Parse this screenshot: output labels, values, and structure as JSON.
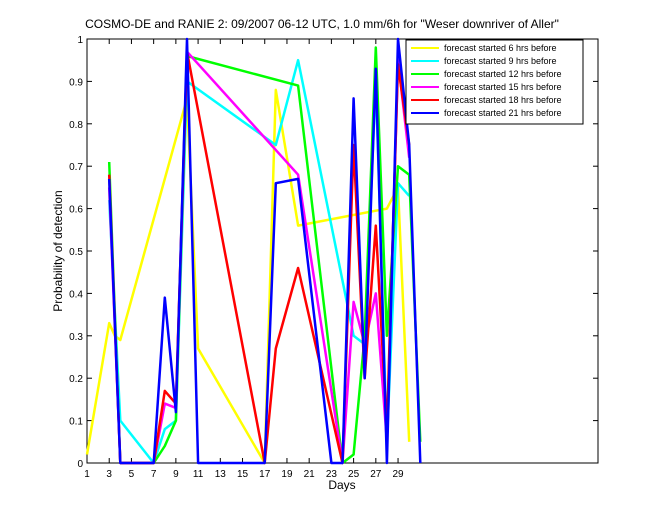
{
  "chart_data": {
    "type": "line",
    "title": "COSMO-DE and RANIE 2: 09/2007 06-12 UTC, 1.0 mm/6h for \"Weser downriver of Aller\"",
    "xlabel": "Days",
    "ylabel": "Probability of detection",
    "xlim": [
      1,
      47
    ],
    "ylim": [
      0,
      1
    ],
    "x_ticks": [
      1,
      3,
      5,
      7,
      9,
      11,
      13,
      15,
      17,
      19,
      21,
      23,
      25,
      27,
      29
    ],
    "y_ticks": [
      0,
      0.1,
      0.2,
      0.3,
      0.4,
      0.5,
      0.6,
      0.7,
      0.8,
      0.9,
      1
    ],
    "y_tick_labels": [
      "0",
      "0.1",
      "0.2",
      "0.3",
      "0.4",
      "0.5",
      "0.6",
      "0.7",
      "0.8",
      "0.9",
      "1"
    ],
    "legend_position": "top-right",
    "grid": false,
    "series": [
      {
        "name": "forecast started 6 hrs before",
        "color": "#ffff00",
        "points": [
          [
            1,
            0.02
          ],
          [
            3,
            0.33
          ],
          [
            3.5,
            0.3
          ],
          [
            4,
            0.29
          ],
          [
            10,
            0.86
          ],
          [
            11,
            0.27
          ],
          [
            17,
            0
          ],
          [
            18,
            0.88
          ],
          [
            20,
            0.56
          ],
          [
            28,
            0.6
          ],
          [
            29,
            0.65
          ],
          [
            30,
            0.05
          ]
        ]
      },
      {
        "name": "forecast started 9 hrs before",
        "color": "#00ffff",
        "points": [
          [
            3,
            0.62
          ],
          [
            4,
            0.1
          ],
          [
            7,
            0
          ],
          [
            8,
            0.08
          ],
          [
            9,
            0.1
          ],
          [
            10,
            0.9
          ],
          [
            18,
            0.75
          ],
          [
            20,
            0.95
          ],
          [
            25,
            0.3
          ],
          [
            26,
            0.28
          ],
          [
            27,
            0.9
          ],
          [
            28,
            0.05
          ],
          [
            29,
            0.66
          ],
          [
            30,
            0.63
          ]
        ]
      },
      {
        "name": "forecast started 12 hrs before",
        "color": "#00ff00",
        "points": [
          [
            3,
            0.71
          ],
          [
            4,
            0
          ],
          [
            7,
            0
          ],
          [
            8,
            0.04
          ],
          [
            9,
            0.1
          ],
          [
            10,
            0.96
          ],
          [
            20,
            0.89
          ],
          [
            24,
            0
          ],
          [
            25,
            0.02
          ],
          [
            26,
            0.3
          ],
          [
            27,
            0.98
          ],
          [
            28,
            0.3
          ],
          [
            29,
            0.7
          ],
          [
            30,
            0.68
          ],
          [
            31,
            0.05
          ]
        ]
      },
      {
        "name": "forecast started 15 hrs before",
        "color": "#ff00ff",
        "points": [
          [
            3,
            0.65
          ],
          [
            4,
            0
          ],
          [
            7,
            0
          ],
          [
            8,
            0.14
          ],
          [
            9,
            0.13
          ],
          [
            10,
            0.97
          ],
          [
            20,
            0.68
          ],
          [
            24,
            0
          ],
          [
            25,
            0.38
          ],
          [
            26,
            0.28
          ],
          [
            27,
            0.4
          ],
          [
            28,
            0.05
          ],
          [
            29,
            0.95
          ],
          [
            30,
            0.72
          ]
        ]
      },
      {
        "name": "forecast started 18 hrs before",
        "color": "#ff0000",
        "points": [
          [
            3,
            0.68
          ],
          [
            4,
            0
          ],
          [
            7,
            0
          ],
          [
            8,
            0.17
          ],
          [
            9,
            0.14
          ],
          [
            10,
            0.97
          ],
          [
            17,
            0
          ],
          [
            18,
            0.27
          ],
          [
            20,
            0.46
          ],
          [
            24,
            0
          ],
          [
            25,
            0.75
          ],
          [
            26,
            0.2
          ],
          [
            27,
            0.56
          ],
          [
            28,
            0.08
          ],
          [
            29,
            0.94
          ],
          [
            30,
            0.75
          ]
        ]
      },
      {
        "name": "forecast started 21 hrs before",
        "color": "#0000ff",
        "points": [
          [
            3,
            0.67
          ],
          [
            4,
            0
          ],
          [
            7,
            0
          ],
          [
            8,
            0.39
          ],
          [
            9,
            0.12
          ],
          [
            10,
            1.0
          ],
          [
            11,
            0
          ],
          [
            17,
            0
          ],
          [
            18,
            0.66
          ],
          [
            20,
            0.67
          ],
          [
            23,
            0
          ],
          [
            24,
            0
          ],
          [
            25,
            0.86
          ],
          [
            26,
            0.2
          ],
          [
            27,
            0.93
          ],
          [
            28,
            0
          ],
          [
            29,
            1.0
          ],
          [
            30,
            0.75
          ],
          [
            31,
            0
          ]
        ]
      }
    ]
  }
}
